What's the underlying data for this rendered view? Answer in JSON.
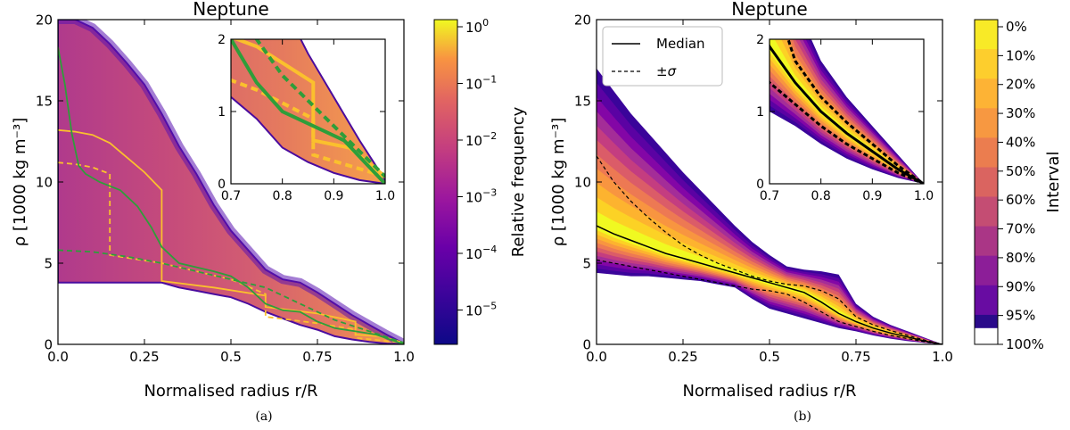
{
  "panel_a": {
    "caption": "(a)",
    "colorbar": {
      "label": "Relative frequency",
      "ticks": [
        {
          "base": "10",
          "exp": "0"
        },
        {
          "base": "10",
          "exp": "−1"
        },
        {
          "base": "10",
          "exp": "−2"
        },
        {
          "base": "10",
          "exp": "−3"
        },
        {
          "base": "10",
          "exp": "−4"
        },
        {
          "base": "10",
          "exp": "−5"
        }
      ]
    }
  },
  "panel_b": {
    "caption": "(b)",
    "legend": {
      "median": "Median",
      "sigma": "±σ"
    },
    "colorbar": {
      "label": "Interval",
      "ticks": [
        "0%",
        "10%",
        "20%",
        "30%",
        "40%",
        "50%",
        "60%",
        "70%",
        "80%",
        "90%",
        "95%",
        "100%"
      ]
    }
  },
  "colors": {
    "yellow": "#fbc02d",
    "green": "#2e9e3a",
    "purple": "#5b0ca8",
    "navy": "#2a0a8a"
  },
  "chart_data": [
    {
      "type": "heatmap",
      "title": "Neptune",
      "xlabel": "Normalised radius r/R",
      "ylabel": "ρ [1000 kg m⁻³]",
      "xlim": [
        0,
        1
      ],
      "ylim": [
        0,
        20
      ],
      "xticks": [
        "0.0",
        "0.25",
        "0.5",
        "0.75",
        "1.0"
      ],
      "yticks": [
        "0",
        "5",
        "10",
        "15",
        "20"
      ],
      "envelope": {
        "r": [
          0,
          0.05,
          0.1,
          0.15,
          0.2,
          0.25,
          0.3,
          0.35,
          0.4,
          0.45,
          0.5,
          0.55,
          0.6,
          0.65,
          0.7,
          0.75,
          0.8,
          0.85,
          0.9,
          0.95,
          1.0
        ],
        "upper": [
          20,
          20,
          19.5,
          18.5,
          17.3,
          16,
          14.2,
          12.2,
          10.5,
          8.6,
          7.0,
          5.8,
          4.6,
          4.0,
          3.8,
          3.2,
          2.5,
          1.8,
          1.2,
          0.6,
          0.05
        ],
        "lower": [
          3.8,
          3.8,
          3.8,
          3.8,
          3.8,
          3.8,
          3.8,
          3.5,
          3.3,
          3.1,
          2.9,
          2.5,
          2.0,
          1.6,
          1.2,
          0.9,
          0.5,
          0.3,
          0.15,
          0.05,
          0.0
        ]
      },
      "series": [
        {
          "name": "yellow solid",
          "color": "yellow",
          "style": "solid",
          "r": [
            0,
            0.05,
            0.1,
            0.15,
            0.2,
            0.25,
            0.3,
            0.3,
            0.45,
            0.6,
            0.6,
            0.75,
            0.86,
            0.86,
            0.93,
            1.0
          ],
          "rho": [
            13.2,
            13.1,
            12.9,
            12.4,
            11.5,
            10.6,
            9.5,
            3.9,
            3.5,
            3.0,
            2.3,
            1.9,
            1.4,
            0.6,
            0.5,
            0.1
          ]
        },
        {
          "name": "yellow dashed",
          "color": "yellow",
          "style": "dashed",
          "r": [
            0,
            0.05,
            0.1,
            0.15,
            0.15,
            0.3,
            0.5,
            0.6,
            0.6,
            0.75,
            0.86,
            0.86,
            1.0
          ],
          "rho": [
            11.2,
            11.1,
            10.9,
            10.5,
            5.5,
            5.0,
            4.0,
            3.1,
            1.7,
            1.3,
            0.9,
            0.4,
            0.1
          ]
        },
        {
          "name": "green solid",
          "color": "green",
          "style": "solid",
          "r": [
            0,
            0.02,
            0.04,
            0.06,
            0.08,
            0.12,
            0.18,
            0.23,
            0.27,
            0.3,
            0.35,
            0.45,
            0.5,
            0.55,
            0.6,
            0.65,
            0.7,
            0.75,
            0.8,
            0.86,
            0.92,
            1.0
          ],
          "rho": [
            18.3,
            16.0,
            13.0,
            11.0,
            10.5,
            10.0,
            9.5,
            8.5,
            7.2,
            6.0,
            5.0,
            4.5,
            4.2,
            3.5,
            2.5,
            2.1,
            2.0,
            1.4,
            1.0,
            0.8,
            0.6,
            0.0
          ]
        },
        {
          "name": "green dashed",
          "color": "green",
          "style": "dashed",
          "r": [
            0,
            0.1,
            0.2,
            0.3,
            0.4,
            0.5,
            0.6,
            0.7,
            0.8,
            0.9,
            1.0
          ],
          "rho": [
            5.8,
            5.7,
            5.4,
            5.0,
            4.5,
            4.0,
            3.5,
            2.5,
            1.5,
            0.8,
            0.1
          ]
        }
      ],
      "inset": {
        "xlim": [
          0.7,
          1.0
        ],
        "ylim": [
          0,
          2
        ],
        "xticks": [
          "0.7",
          "0.8",
          "0.9",
          "1.0"
        ],
        "yticks": [
          "0",
          "1",
          "2"
        ]
      }
    },
    {
      "type": "area",
      "title": "Neptune",
      "xlabel": "Normalised radius r/R",
      "ylabel": "ρ [1000 kg m⁻³]",
      "xlim": [
        0,
        1
      ],
      "ylim": [
        0,
        20
      ],
      "xticks": [
        "0.0",
        "0.25",
        "0.5",
        "0.75",
        "1.0"
      ],
      "yticks": [
        "0",
        "5",
        "10",
        "15",
        "20"
      ],
      "r": [
        0,
        0.05,
        0.1,
        0.15,
        0.2,
        0.25,
        0.3,
        0.35,
        0.4,
        0.45,
        0.5,
        0.55,
        0.6,
        0.65,
        0.7,
        0.75,
        0.8,
        0.85,
        0.9,
        0.95,
        1.0
      ],
      "median": [
        7.3,
        6.8,
        6.4,
        6.0,
        5.6,
        5.3,
        5.0,
        4.7,
        4.4,
        4.1,
        3.8,
        3.5,
        3.2,
        2.6,
        1.9,
        1.4,
        1.0,
        0.7,
        0.45,
        0.2,
        0.0
      ],
      "sigma_upper": [
        11.6,
        10.0,
        8.8,
        7.8,
        6.9,
        6.1,
        5.5,
        5.0,
        4.6,
        4.2,
        3.9,
        3.7,
        3.6,
        3.3,
        2.8,
        1.7,
        1.2,
        0.85,
        0.55,
        0.25,
        0.0
      ],
      "sigma_lower": [
        5.2,
        5.0,
        4.8,
        4.6,
        4.4,
        4.2,
        4.0,
        3.8,
        3.6,
        3.4,
        3.3,
        3.1,
        2.6,
        2.0,
        1.4,
        1.1,
        0.8,
        0.55,
        0.35,
        0.15,
        0.0
      ],
      "band95_upper": [
        17.0,
        15.6,
        14.2,
        13.0,
        11.8,
        10.6,
        9.5,
        8.4,
        7.3,
        6.3,
        5.5,
        4.8,
        4.6,
        4.5,
        4.3,
        2.5,
        1.7,
        1.2,
        0.8,
        0.4,
        0.0
      ],
      "band95_lower": [
        4.4,
        4.3,
        4.2,
        4.2,
        4.1,
        4.0,
        3.9,
        3.7,
        3.5,
        2.8,
        2.2,
        1.9,
        1.6,
        1.3,
        1.0,
        0.8,
        0.55,
        0.35,
        0.2,
        0.08,
        0.0
      ],
      "inset": {
        "xlim": [
          0.7,
          1.0
        ],
        "ylim": [
          0,
          2
        ],
        "xticks": [
          "0.7",
          "0.8",
          "0.9",
          "1.0"
        ],
        "yticks": [
          "0",
          "1",
          "2"
        ]
      }
    }
  ]
}
